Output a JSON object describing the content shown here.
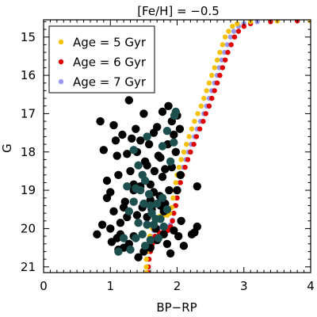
{
  "chart_data": {
    "type": "scatter",
    "title": "[Fe/H] = −0.5",
    "xlabel": "BP−RP",
    "ylabel": "G",
    "xlim": [
      0,
      4
    ],
    "ylim": [
      21.15,
      14.55
    ],
    "y_inverted": true,
    "x_ticks": [
      0,
      1,
      2,
      3,
      4
    ],
    "x_tick_labels": [
      "0",
      "1",
      "2",
      "3",
      "4"
    ],
    "y_ticks": [
      15,
      16,
      17,
      18,
      19,
      20,
      21
    ],
    "y_tick_labels": [
      "15",
      "16",
      "17",
      "18",
      "19",
      "20",
      "21"
    ],
    "legend_position": "top-left",
    "series": [
      {
        "name": "Age = 7 Gyr",
        "color": "#9999ee",
        "points": [
          [
            1.55,
            21.15
          ],
          [
            1.55,
            21.0
          ],
          [
            1.55,
            20.8
          ],
          [
            1.56,
            20.6
          ],
          [
            1.58,
            20.4
          ],
          [
            1.61,
            20.2
          ],
          [
            1.65,
            20.05
          ],
          [
            1.72,
            19.98
          ],
          [
            1.8,
            19.97
          ],
          [
            1.86,
            19.95
          ],
          [
            1.9,
            19.9
          ],
          [
            1.93,
            19.78
          ],
          [
            1.95,
            19.6
          ],
          [
            1.97,
            19.4
          ],
          [
            1.99,
            19.2
          ],
          [
            2.01,
            19.0
          ],
          [
            2.03,
            18.8
          ],
          [
            2.06,
            18.6
          ],
          [
            2.09,
            18.4
          ],
          [
            2.13,
            18.2
          ],
          [
            2.17,
            18.0
          ],
          [
            2.21,
            17.8
          ],
          [
            2.26,
            17.6
          ],
          [
            2.3,
            17.4
          ],
          [
            2.35,
            17.2
          ],
          [
            2.4,
            17.0
          ],
          [
            2.44,
            16.8
          ],
          [
            2.48,
            16.6
          ],
          [
            2.52,
            16.4
          ],
          [
            2.56,
            16.2
          ],
          [
            2.6,
            16.0
          ],
          [
            2.63,
            15.8
          ],
          [
            2.67,
            15.6
          ],
          [
            2.71,
            15.4
          ],
          [
            2.75,
            15.2
          ],
          [
            2.8,
            15.0
          ],
          [
            2.85,
            14.85
          ],
          [
            2.92,
            14.72
          ],
          [
            3.0,
            14.65
          ],
          [
            3.2,
            14.6
          ],
          [
            3.5,
            14.58
          ],
          [
            4.0,
            14.58
          ]
        ]
      },
      {
        "name": "Age = 6 Gyr",
        "color": "#e00000",
        "points": [
          [
            1.57,
            21.15
          ],
          [
            1.57,
            21.0
          ],
          [
            1.58,
            20.8
          ],
          [
            1.6,
            20.6
          ],
          [
            1.63,
            20.4
          ],
          [
            1.67,
            20.2
          ],
          [
            1.73,
            20.1
          ],
          [
            1.8,
            20.08
          ],
          [
            1.86,
            20.05
          ],
          [
            1.9,
            19.95
          ],
          [
            1.93,
            19.8
          ],
          [
            1.95,
            19.6
          ],
          [
            1.98,
            19.4
          ],
          [
            2.0,
            19.2
          ],
          [
            2.02,
            19.0
          ],
          [
            2.05,
            18.8
          ],
          [
            2.08,
            18.6
          ],
          [
            2.12,
            18.4
          ],
          [
            2.16,
            18.2
          ],
          [
            2.2,
            18.0
          ],
          [
            2.25,
            17.8
          ],
          [
            2.29,
            17.6
          ],
          [
            2.34,
            17.4
          ],
          [
            2.39,
            17.2
          ],
          [
            2.43,
            17.0
          ],
          [
            2.48,
            16.8
          ],
          [
            2.52,
            16.6
          ],
          [
            2.56,
            16.4
          ],
          [
            2.6,
            16.2
          ],
          [
            2.64,
            16.0
          ],
          [
            2.68,
            15.8
          ],
          [
            2.72,
            15.6
          ],
          [
            2.76,
            15.4
          ],
          [
            2.81,
            15.2
          ],
          [
            2.86,
            15.0
          ],
          [
            2.92,
            14.85
          ],
          [
            3.0,
            14.72
          ],
          [
            3.1,
            14.65
          ],
          [
            3.4,
            14.6
          ],
          [
            3.8,
            14.58
          ],
          [
            4.0,
            14.58
          ]
        ]
      },
      {
        "name": "Age = 5 Gyr",
        "color": "#f5c000",
        "points": [
          [
            1.54,
            21.15
          ],
          [
            1.54,
            21.0
          ],
          [
            1.54,
            20.8
          ],
          [
            1.55,
            20.6
          ],
          [
            1.57,
            20.4
          ],
          [
            1.59,
            20.2
          ],
          [
            1.63,
            20.0
          ],
          [
            1.68,
            19.8
          ],
          [
            1.74,
            19.68
          ],
          [
            1.8,
            19.65
          ],
          [
            1.85,
            19.65
          ],
          [
            1.89,
            19.6
          ],
          [
            1.92,
            19.45
          ],
          [
            1.94,
            19.2
          ],
          [
            1.96,
            19.0
          ],
          [
            1.98,
            18.8
          ],
          [
            2.0,
            18.6
          ],
          [
            2.03,
            18.4
          ],
          [
            2.06,
            18.2
          ],
          [
            2.1,
            18.0
          ],
          [
            2.14,
            17.8
          ],
          [
            2.18,
            17.6
          ],
          [
            2.22,
            17.4
          ],
          [
            2.26,
            17.2
          ],
          [
            2.31,
            17.0
          ],
          [
            2.36,
            16.8
          ],
          [
            2.4,
            16.6
          ],
          [
            2.44,
            16.4
          ],
          [
            2.48,
            16.2
          ],
          [
            2.52,
            16.0
          ],
          [
            2.56,
            15.8
          ],
          [
            2.6,
            15.6
          ],
          [
            2.64,
            15.4
          ],
          [
            2.68,
            15.2
          ],
          [
            2.72,
            15.0
          ],
          [
            2.77,
            14.85
          ],
          [
            2.83,
            14.72
          ],
          [
            2.9,
            14.65
          ],
          [
            3.1,
            14.6
          ],
          [
            3.5,
            14.58
          ],
          [
            4.0,
            14.58
          ]
        ]
      },
      {
        "name": "",
        "color": "#000000",
        "points": [
          [
            0.8,
            20.15
          ],
          [
            0.88,
            19.9
          ],
          [
            0.95,
            19.2
          ],
          [
            0.9,
            17.95
          ],
          [
            0.95,
            18.75
          ],
          [
            1.0,
            19.05
          ],
          [
            1.0,
            20.0
          ],
          [
            1.02,
            20.35
          ],
          [
            1.05,
            19.55
          ],
          [
            1.05,
            17.3
          ],
          [
            1.08,
            17.7
          ],
          [
            1.1,
            18.1
          ],
          [
            1.12,
            18.6
          ],
          [
            1.12,
            20.55
          ],
          [
            1.15,
            19.85
          ],
          [
            1.18,
            17.55
          ],
          [
            1.2,
            20.5
          ],
          [
            1.22,
            19.3
          ],
          [
            1.25,
            18.05
          ],
          [
            1.25,
            19.7
          ],
          [
            1.28,
            20.4
          ],
          [
            1.3,
            18.5
          ],
          [
            1.32,
            17.65
          ],
          [
            1.35,
            19.0
          ],
          [
            1.35,
            20.2
          ],
          [
            1.38,
            17.4
          ],
          [
            1.4,
            18.0
          ],
          [
            1.4,
            19.65
          ],
          [
            1.42,
            20.75
          ],
          [
            1.45,
            17.7
          ],
          [
            1.45,
            18.9
          ],
          [
            1.48,
            19.45
          ],
          [
            1.5,
            17.0
          ],
          [
            1.5,
            20.6
          ],
          [
            1.52,
            18.25
          ],
          [
            1.55,
            19.7
          ],
          [
            1.58,
            17.8
          ],
          [
            1.6,
            18.85
          ],
          [
            1.6,
            19.25
          ],
          [
            1.62,
            19.5
          ],
          [
            1.65,
            17.5
          ],
          [
            1.66,
            18.5
          ],
          [
            1.68,
            20.0
          ],
          [
            1.7,
            20.3
          ],
          [
            1.7,
            17.35
          ],
          [
            1.72,
            18.1
          ],
          [
            1.74,
            19.15
          ],
          [
            1.75,
            19.4
          ],
          [
            1.78,
            16.95
          ],
          [
            1.78,
            18.65
          ],
          [
            1.8,
            19.55
          ],
          [
            1.8,
            20.15
          ],
          [
            1.82,
            19.35
          ],
          [
            1.85,
            19.5
          ],
          [
            1.85,
            20.4
          ],
          [
            1.86,
            17.8
          ],
          [
            1.88,
            19.0
          ],
          [
            1.9,
            20.65
          ],
          [
            1.92,
            17.2
          ],
          [
            1.92,
            18.4
          ],
          [
            1.95,
            17.55
          ],
          [
            1.95,
            20.05
          ],
          [
            1.98,
            18.0
          ],
          [
            2.0,
            17.05
          ],
          [
            2.0,
            19.0
          ],
          [
            2.02,
            20.2
          ],
          [
            2.04,
            17.4
          ],
          [
            2.05,
            18.6
          ],
          [
            2.06,
            19.8
          ],
          [
            2.1,
            20.45
          ],
          [
            1.87,
            16.8
          ],
          [
            2.22,
            20.15
          ],
          [
            2.3,
            18.9
          ],
          [
            2.3,
            19.95
          ],
          [
            1.75,
            18.15
          ],
          [
            1.55,
            18.35
          ],
          [
            1.35,
            18.85
          ],
          [
            1.2,
            19.45
          ],
          [
            1.15,
            20.15
          ],
          [
            1.6,
            20.5
          ],
          [
            1.65,
            19.05
          ],
          [
            1.82,
            18.45
          ],
          [
            0.85,
            17.2
          ],
          [
            1.28,
            16.65
          ],
          [
            1.1,
            20.25
          ],
          [
            2.26,
            20.1
          ]
        ]
      },
      {
        "name": "",
        "color": "#1d4f4f",
        "points": [
          [
            1.12,
            20.6
          ],
          [
            1.2,
            20.25
          ],
          [
            1.28,
            19.55
          ],
          [
            1.3,
            20.55
          ],
          [
            1.35,
            19.3
          ],
          [
            1.38,
            20.25
          ],
          [
            1.42,
            19.85
          ],
          [
            1.45,
            19.0
          ],
          [
            1.48,
            20.15
          ],
          [
            1.5,
            19.35
          ],
          [
            1.52,
            20.45
          ],
          [
            1.55,
            19.9
          ],
          [
            1.58,
            19.1
          ],
          [
            1.6,
            20.3
          ],
          [
            1.62,
            19.6
          ],
          [
            1.65,
            19.9
          ],
          [
            1.7,
            19.35
          ],
          [
            1.72,
            20.25
          ],
          [
            1.75,
            19.75
          ],
          [
            1.78,
            19.2
          ],
          [
            1.8,
            19.95
          ],
          [
            1.85,
            19.5
          ],
          [
            1.9,
            18.25
          ],
          [
            1.95,
            17.75
          ],
          [
            1.85,
            17.45
          ],
          [
            1.78,
            17.85
          ],
          [
            1.48,
            18.6
          ],
          [
            1.38,
            18.95
          ],
          [
            1.25,
            18.9
          ],
          [
            1.35,
            17.95
          ],
          [
            1.55,
            17.6
          ],
          [
            1.6,
            19.4
          ],
          [
            1.68,
            19.75
          ],
          [
            1.52,
            18.75
          ],
          [
            1.42,
            18.35
          ],
          [
            1.96,
            17.05
          ],
          [
            1.98,
            16.95
          ]
        ]
      }
    ]
  }
}
